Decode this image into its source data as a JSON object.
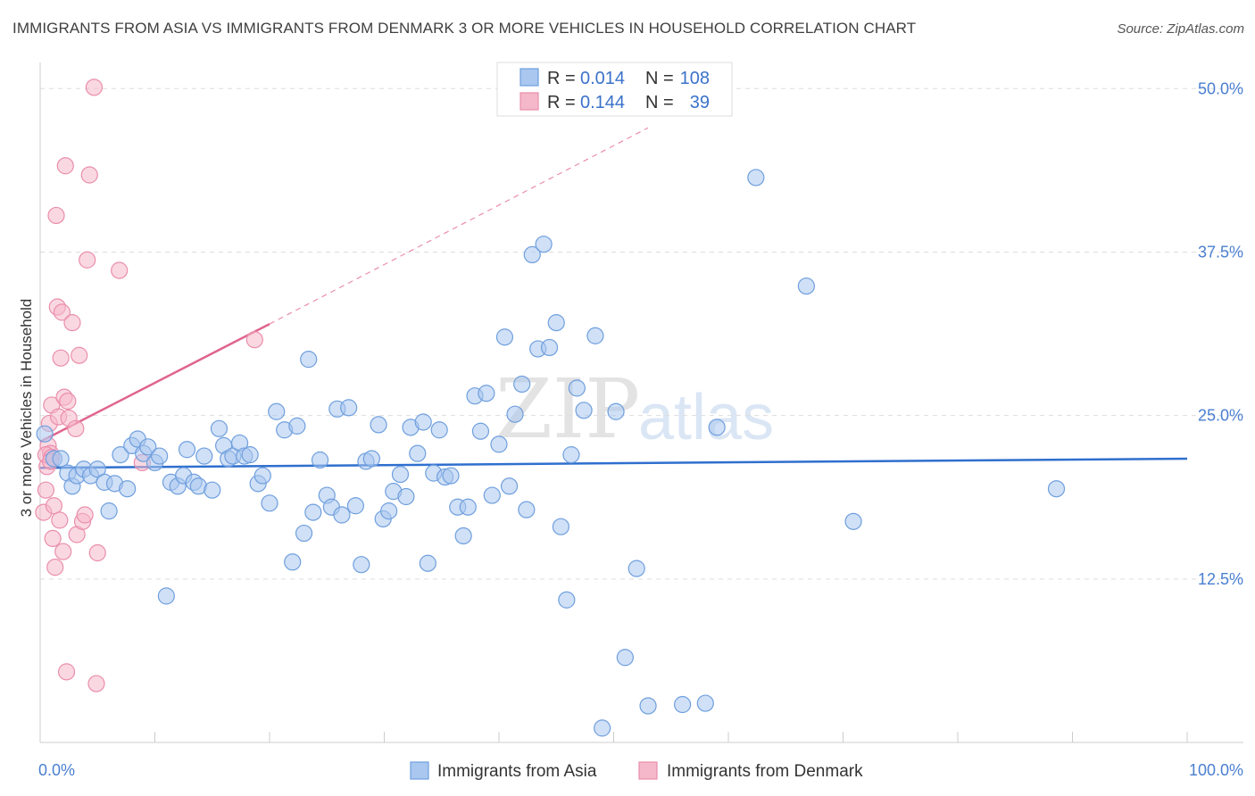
{
  "title": "IMMIGRANTS FROM ASIA VS IMMIGRANTS FROM DENMARK 3 OR MORE VEHICLES IN HOUSEHOLD CORRELATION CHART",
  "source": "Source: ZipAtlas.com",
  "watermark": {
    "zip": "ZIP",
    "atlas": "atlas"
  },
  "colors": {
    "asia_fill": "#a9c7ef",
    "asia_stroke": "#6f9fde",
    "asia_line": "#2f6fce",
    "denmark_fill": "#f5b8ca",
    "denmark_stroke": "#ea8eab",
    "denmark_line": "#e0648e",
    "grid": "#dddddd",
    "tick_text": "#4a7fd1"
  },
  "legend": {
    "asia": {
      "r_label": "R =",
      "r_value": "0.014",
      "n_label": "N =",
      "n_value": "108"
    },
    "denmark": {
      "r_label": "R =",
      "r_value": "0.144",
      "n_label": "N =",
      "n_value": "39"
    }
  },
  "chart_data": {
    "type": "scatter",
    "xlabel": "",
    "ylabel": "3 or more Vehicles in Household",
    "xlim": [
      0,
      100
    ],
    "ylim": [
      0,
      52
    ],
    "x_tick_labels": {
      "left": "0.0%",
      "right": "100.0%"
    },
    "y_ticks": [
      {
        "value": 12.5,
        "label": "12.5%"
      },
      {
        "value": 25.0,
        "label": "25.0%"
      },
      {
        "value": 37.5,
        "label": "37.5%"
      },
      {
        "value": 50.0,
        "label": "50.0%"
      }
    ],
    "series": [
      {
        "name": "Immigrants from Asia",
        "r": 0.014,
        "n": 108,
        "trend": {
          "x": [
            0,
            100
          ],
          "y": [
            21.0,
            21.7
          ]
        },
        "points": [
          [
            0.4,
            23.6
          ],
          [
            1.2,
            21.7
          ],
          [
            1.8,
            21.7
          ],
          [
            2.4,
            20.6
          ],
          [
            2.8,
            19.6
          ],
          [
            3.2,
            20.4
          ],
          [
            3.8,
            20.9
          ],
          [
            4.4,
            20.4
          ],
          [
            5.0,
            20.9
          ],
          [
            5.6,
            19.9
          ],
          [
            6.0,
            17.7
          ],
          [
            6.5,
            19.8
          ],
          [
            7.0,
            22.0
          ],
          [
            7.6,
            19.4
          ],
          [
            8.0,
            22.7
          ],
          [
            8.5,
            23.2
          ],
          [
            9.0,
            22.1
          ],
          [
            9.4,
            22.6
          ],
          [
            10.0,
            21.4
          ],
          [
            10.4,
            21.9
          ],
          [
            11.0,
            11.2
          ],
          [
            11.4,
            19.9
          ],
          [
            12.0,
            19.6
          ],
          [
            12.5,
            20.4
          ],
          [
            12.8,
            22.4
          ],
          [
            13.4,
            19.9
          ],
          [
            13.8,
            19.6
          ],
          [
            14.3,
            21.9
          ],
          [
            15.0,
            19.3
          ],
          [
            15.6,
            24.0
          ],
          [
            16.0,
            22.7
          ],
          [
            16.4,
            21.7
          ],
          [
            16.8,
            21.9
          ],
          [
            17.4,
            22.9
          ],
          [
            17.8,
            21.9
          ],
          [
            18.3,
            22.0
          ],
          [
            19.0,
            19.8
          ],
          [
            19.4,
            20.4
          ],
          [
            20.0,
            18.3
          ],
          [
            20.6,
            25.3
          ],
          [
            21.3,
            23.9
          ],
          [
            22.0,
            13.8
          ],
          [
            22.4,
            24.2
          ],
          [
            23.0,
            16.0
          ],
          [
            23.4,
            29.3
          ],
          [
            23.8,
            17.6
          ],
          [
            24.4,
            21.6
          ],
          [
            25.0,
            18.9
          ],
          [
            25.4,
            18.0
          ],
          [
            25.9,
            25.5
          ],
          [
            26.3,
            17.4
          ],
          [
            26.9,
            25.6
          ],
          [
            27.5,
            18.1
          ],
          [
            28.0,
            13.6
          ],
          [
            28.4,
            21.5
          ],
          [
            28.9,
            21.7
          ],
          [
            29.5,
            24.3
          ],
          [
            29.9,
            17.1
          ],
          [
            30.4,
            17.7
          ],
          [
            30.8,
            19.2
          ],
          [
            31.4,
            20.5
          ],
          [
            31.9,
            18.8
          ],
          [
            32.3,
            24.1
          ],
          [
            32.9,
            22.1
          ],
          [
            33.4,
            24.5
          ],
          [
            33.8,
            13.7
          ],
          [
            34.3,
            20.6
          ],
          [
            34.8,
            23.9
          ],
          [
            35.3,
            20.3
          ],
          [
            35.8,
            20.4
          ],
          [
            36.4,
            18.0
          ],
          [
            36.9,
            15.8
          ],
          [
            37.3,
            18.0
          ],
          [
            37.9,
            26.5
          ],
          [
            38.4,
            23.8
          ],
          [
            38.9,
            26.7
          ],
          [
            39.4,
            18.9
          ],
          [
            40.0,
            22.8
          ],
          [
            40.5,
            31.0
          ],
          [
            40.9,
            19.6
          ],
          [
            41.4,
            25.1
          ],
          [
            42.0,
            27.4
          ],
          [
            42.4,
            17.8
          ],
          [
            42.9,
            37.3
          ],
          [
            43.4,
            30.1
          ],
          [
            43.9,
            38.1
          ],
          [
            44.4,
            30.2
          ],
          [
            45.0,
            32.1
          ],
          [
            45.4,
            16.5
          ],
          [
            45.9,
            10.9
          ],
          [
            46.3,
            22.0
          ],
          [
            46.8,
            27.1
          ],
          [
            47.4,
            25.4
          ],
          [
            48.4,
            31.1
          ],
          [
            49.0,
            1.1
          ],
          [
            50.2,
            25.3
          ],
          [
            51.0,
            6.5
          ],
          [
            52.0,
            13.3
          ],
          [
            53.0,
            2.8
          ],
          [
            56.0,
            2.9
          ],
          [
            58.0,
            3.0
          ],
          [
            59.0,
            24.1
          ],
          [
            62.4,
            43.2
          ],
          [
            66.8,
            34.9
          ],
          [
            70.9,
            16.9
          ],
          [
            88.6,
            19.4
          ]
        ]
      },
      {
        "name": "Immigrants from Denmark",
        "r": 0.144,
        "n": 39,
        "trend": {
          "x": [
            0,
            20
          ],
          "y": [
            23.0,
            32.0
          ]
        },
        "trend_extended": {
          "x": [
            20,
            53
          ],
          "y": [
            32.0,
            47.0
          ]
        },
        "points": [
          [
            0.3,
            17.6
          ],
          [
            0.5,
            19.3
          ],
          [
            0.6,
            21.1
          ],
          [
            0.7,
            22.7
          ],
          [
            0.8,
            24.4
          ],
          [
            0.9,
            22.1
          ],
          [
            1.0,
            25.8
          ],
          [
            1.1,
            15.6
          ],
          [
            1.2,
            18.1
          ],
          [
            1.3,
            13.4
          ],
          [
            1.4,
            40.3
          ],
          [
            1.5,
            33.3
          ],
          [
            1.6,
            24.9
          ],
          [
            1.7,
            17.0
          ],
          [
            1.8,
            29.4
          ],
          [
            1.9,
            32.9
          ],
          [
            2.0,
            14.6
          ],
          [
            2.1,
            26.4
          ],
          [
            2.2,
            44.1
          ],
          [
            2.3,
            5.4
          ],
          [
            2.4,
            26.1
          ],
          [
            2.5,
            24.8
          ],
          [
            2.8,
            32.1
          ],
          [
            3.1,
            24.0
          ],
          [
            3.2,
            15.9
          ],
          [
            3.4,
            29.6
          ],
          [
            3.7,
            16.9
          ],
          [
            3.9,
            17.4
          ],
          [
            4.1,
            36.9
          ],
          [
            4.3,
            43.4
          ],
          [
            4.7,
            50.1
          ],
          [
            4.9,
            4.5
          ],
          [
            5.0,
            14.5
          ],
          [
            6.9,
            36.1
          ],
          [
            8.9,
            21.4
          ],
          [
            18.7,
            30.8
          ],
          [
            0.5,
            22.0
          ],
          [
            1.0,
            21.8
          ],
          [
            0.9,
            21.5
          ]
        ]
      }
    ]
  },
  "bottom_legend": [
    "Immigrants from Asia",
    "Immigrants from Denmark"
  ]
}
